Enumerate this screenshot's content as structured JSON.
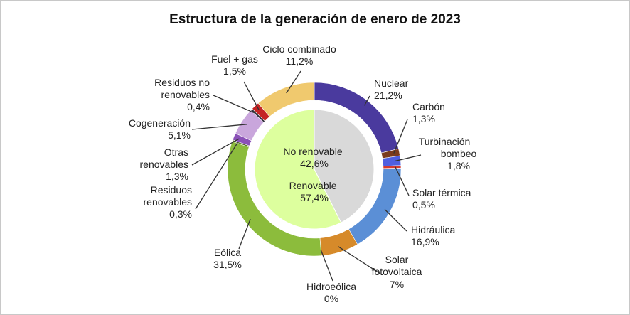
{
  "chart_data": {
    "type": "pie",
    "style": "nested-donut",
    "title": "Estructura de la generación de enero de 2023",
    "inner": [
      {
        "name": "No renovable",
        "value": 42.6,
        "value_label": "42,6%",
        "color": "#d9d9d9"
      },
      {
        "name": "Renovable",
        "value": 57.4,
        "value_label": "57,4%",
        "color": "#ddff9e"
      }
    ],
    "outer": [
      {
        "name": "Nuclear",
        "value": 21.2,
        "value_label": "21,2%",
        "color": "#4a3a9e"
      },
      {
        "name": "Carbón",
        "value": 1.3,
        "value_label": "1,3%",
        "color": "#7a3b1d"
      },
      {
        "name": "Turbinación bombeo",
        "value": 1.8,
        "value_label": "1,8%",
        "color": "#4f5fe0"
      },
      {
        "name": "Solar térmica",
        "value": 0.5,
        "value_label": "0,5%",
        "color": "#d43a2f"
      },
      {
        "name": "Hidráulica",
        "value": 16.9,
        "value_label": "16,9%",
        "color": "#5b8fd6"
      },
      {
        "name": "Solar fotovoltaica",
        "value": 7.0,
        "value_label": "7%",
        "color": "#d68a2a"
      },
      {
        "name": "Hidroeólica",
        "value": 0.0,
        "value_label": "0%",
        "color": "#4a86c7"
      },
      {
        "name": "Eólica",
        "value": 31.5,
        "value_label": "31,5%",
        "color": "#8cbc3c"
      },
      {
        "name": "Residuos renovables",
        "value": 0.3,
        "value_label": "0,3%",
        "color": "#5a6e2c"
      },
      {
        "name": "Otras renovables",
        "value": 1.3,
        "value_label": "1,3%",
        "color": "#8b52b8"
      },
      {
        "name": "Cogeneración",
        "value": 5.1,
        "value_label": "5,1%",
        "color": "#c9a6dc"
      },
      {
        "name": "Residuos no renovables",
        "value": 0.4,
        "value_label": "0,4%",
        "color": "#2f2f3a"
      },
      {
        "name": "Fuel + gas",
        "value": 1.5,
        "value_label": "1,5%",
        "color": "#c42424"
      },
      {
        "name": "Ciclo combinado",
        "value": 11.2,
        "value_label": "11,2%",
        "color": "#f0c96e"
      }
    ]
  }
}
